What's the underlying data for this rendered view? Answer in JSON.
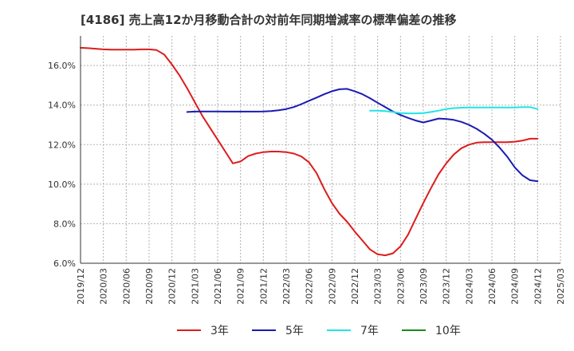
{
  "chart_data": {
    "type": "line",
    "title": "[4186]  売上高12か月移動合計の対前年同期増減率の標準偏差の推移",
    "xlabel": "",
    "ylabel": "",
    "ylim": [
      6,
      17.5
    ],
    "yticks": [
      "6.0%",
      "8.0%",
      "10.0%",
      "12.0%",
      "14.0%",
      "16.0%"
    ],
    "ytick_values": [
      6,
      8,
      10,
      12,
      14,
      16
    ],
    "xticks": [
      "2019/12",
      "2020/03",
      "2020/06",
      "2020/09",
      "2020/12",
      "2021/03",
      "2021/06",
      "2021/09",
      "2021/12",
      "2022/03",
      "2022/06",
      "2022/09",
      "2022/12",
      "2023/03",
      "2023/06",
      "2023/09",
      "2023/12",
      "2024/03",
      "2024/06",
      "2024/09",
      "2024/12",
      "2025/03"
    ],
    "xrange": [
      "2019/12",
      "2025/03"
    ],
    "grid": true,
    "legend_position": "bottom",
    "series": [
      {
        "name": "3年",
        "color": "#dd1c1c",
        "x": [
          "2019/12",
          "2020/01",
          "2020/02",
          "2020/03",
          "2020/04",
          "2020/05",
          "2020/06",
          "2020/07",
          "2020/08",
          "2020/09",
          "2020/10",
          "2020/11",
          "2020/12",
          "2021/01",
          "2021/02",
          "2021/03",
          "2021/04",
          "2021/05",
          "2021/06",
          "2021/07",
          "2021/08",
          "2021/09",
          "2021/10",
          "2021/11",
          "2021/12",
          "2022/01",
          "2022/02",
          "2022/03",
          "2022/04",
          "2022/05",
          "2022/06",
          "2022/07",
          "2022/08",
          "2022/09",
          "2022/10",
          "2022/11",
          "2022/12",
          "2023/01",
          "2023/02",
          "2023/03",
          "2023/04",
          "2023/05",
          "2023/06",
          "2023/07",
          "2023/08",
          "2023/09",
          "2023/10",
          "2023/11",
          "2023/12",
          "2024/01",
          "2024/02",
          "2024/03",
          "2024/04",
          "2024/05",
          "2024/06",
          "2024/07",
          "2024/08",
          "2024/09",
          "2024/10",
          "2024/11",
          "2024/12"
        ],
        "values": [
          16.9,
          16.88,
          16.85,
          16.82,
          16.8,
          16.8,
          16.8,
          16.8,
          16.82,
          16.82,
          16.78,
          16.55,
          16.05,
          15.5,
          14.85,
          14.15,
          13.45,
          12.85,
          12.25,
          11.65,
          11.05,
          11.15,
          11.42,
          11.55,
          11.62,
          11.65,
          11.65,
          11.62,
          11.55,
          11.4,
          11.1,
          10.55,
          9.75,
          9.05,
          8.5,
          8.1,
          7.6,
          7.15,
          6.7,
          6.45,
          6.4,
          6.5,
          6.85,
          7.45,
          8.25,
          9.05,
          9.8,
          10.5,
          11.05,
          11.5,
          11.82,
          12.0,
          12.1,
          12.12,
          12.12,
          12.12,
          12.12,
          12.15,
          12.2,
          12.3,
          12.3
        ],
        "values_note": ""
      },
      {
        "name": "5年",
        "color": "#1a1ab4",
        "x": [
          "2021/02",
          "2021/03",
          "2021/04",
          "2021/05",
          "2021/06",
          "2021/07",
          "2021/08",
          "2021/09",
          "2021/10",
          "2021/11",
          "2021/12",
          "2022/01",
          "2022/02",
          "2022/03",
          "2022/04",
          "2022/05",
          "2022/06",
          "2022/07",
          "2022/08",
          "2022/09",
          "2022/10",
          "2022/11",
          "2022/12",
          "2023/01",
          "2023/02",
          "2023/03",
          "2023/04",
          "2023/05",
          "2023/06",
          "2023/07",
          "2023/08",
          "2023/09",
          "2023/10",
          "2023/11",
          "2023/12",
          "2024/01",
          "2024/02",
          "2024/03",
          "2024/04",
          "2024/05",
          "2024/06",
          "2024/07",
          "2024/08",
          "2024/09",
          "2024/10",
          "2024/11",
          "2024/12"
        ],
        "values": [
          13.65,
          13.67,
          13.68,
          13.68,
          13.68,
          13.67,
          13.67,
          13.67,
          13.67,
          13.67,
          13.68,
          13.7,
          13.74,
          13.8,
          13.9,
          14.05,
          14.22,
          14.38,
          14.55,
          14.7,
          14.8,
          14.82,
          14.7,
          14.55,
          14.35,
          14.12,
          13.9,
          13.68,
          13.5,
          13.35,
          13.22,
          13.12,
          13.22,
          13.32,
          13.3,
          13.25,
          13.15,
          13.0,
          12.8,
          12.55,
          12.25,
          11.85,
          11.4,
          10.85,
          10.45,
          10.2,
          10.15
        ]
      },
      {
        "name": "7年",
        "color": "#22e4e4",
        "x": [
          "2023/02",
          "2023/03",
          "2023/04",
          "2023/05",
          "2023/06",
          "2023/07",
          "2023/08",
          "2023/09",
          "2023/10",
          "2023/11",
          "2023/12",
          "2024/01",
          "2024/02",
          "2024/03",
          "2024/04",
          "2024/05",
          "2024/06",
          "2024/07",
          "2024/08",
          "2024/09",
          "2024/10",
          "2024/11",
          "2024/12"
        ],
        "values": [
          13.72,
          13.72,
          13.7,
          13.65,
          13.6,
          13.58,
          13.58,
          13.6,
          13.65,
          13.72,
          13.8,
          13.85,
          13.87,
          13.88,
          13.88,
          13.88,
          13.88,
          13.88,
          13.88,
          13.88,
          13.9,
          13.9,
          13.8
        ]
      },
      {
        "name": "10年",
        "color": "#1a8a1a",
        "x": [],
        "values": []
      }
    ]
  }
}
